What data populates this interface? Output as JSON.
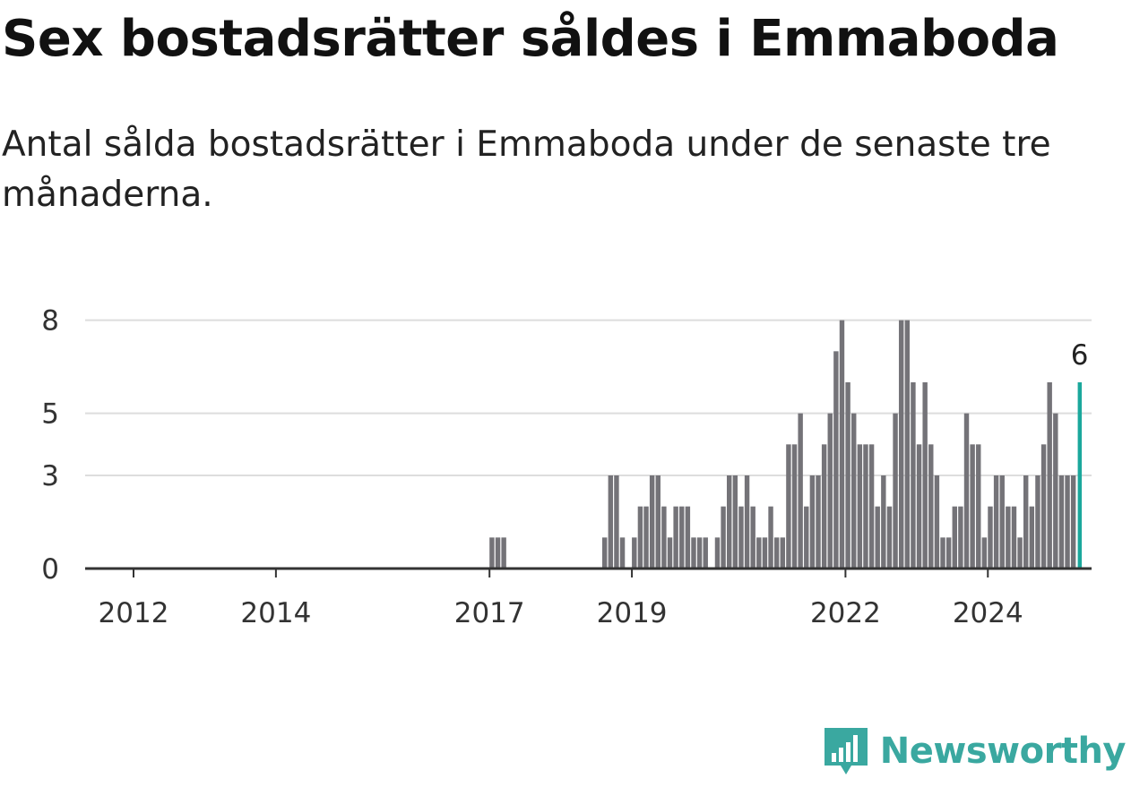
{
  "header": {
    "title": "Sex bostadsrätter såldes i Emmaboda",
    "subtitle": "Antal sålda bostadsrätter i Emmaboda under de senaste tre månaderna."
  },
  "brand": {
    "name": "Newsworthy",
    "icon": "newsworthy-logo-icon",
    "color": "#3aa8a0"
  },
  "colors": {
    "bar": "#747378",
    "highlight": "#1ba89c",
    "grid": "#dddddd",
    "axis": "#333333"
  },
  "chart_data": {
    "type": "bar",
    "x_start": "2011-01",
    "x_tick_labels": [
      "2012",
      "2014",
      "2017",
      "2019",
      "2022",
      "2024"
    ],
    "y_ticks": [
      0,
      3,
      5,
      8
    ],
    "ylim": [
      0,
      9
    ],
    "grid": true,
    "values": [
      0,
      0,
      0,
      0,
      0,
      0,
      0,
      0,
      0,
      0,
      0,
      0,
      0,
      0,
      0,
      0,
      0,
      0,
      0,
      0,
      0,
      0,
      0,
      0,
      0,
      0,
      0,
      0,
      0,
      0,
      0,
      0,
      0,
      0,
      0,
      0,
      0,
      0,
      0,
      0,
      0,
      0,
      0,
      0,
      0,
      0,
      0,
      0,
      0,
      0,
      0,
      0,
      0,
      0,
      0,
      0,
      0,
      0,
      0,
      0,
      0,
      0,
      0,
      0,
      0,
      0,
      0,
      0,
      0,
      0,
      0,
      0,
      1,
      1,
      1,
      0,
      0,
      0,
      0,
      0,
      0,
      0,
      0,
      0,
      0,
      0,
      0,
      0,
      0,
      0,
      0,
      1,
      3,
      3,
      1,
      0,
      1,
      2,
      2,
      3,
      3,
      2,
      1,
      2,
      2,
      2,
      1,
      1,
      1,
      0,
      1,
      2,
      3,
      3,
      2,
      3,
      2,
      1,
      1,
      2,
      1,
      1,
      4,
      4,
      5,
      2,
      3,
      3,
      4,
      5,
      7,
      8,
      6,
      5,
      4,
      4,
      4,
      2,
      3,
      2,
      5,
      8,
      8,
      6,
      4,
      6,
      4,
      3,
      1,
      1,
      2,
      2,
      5,
      4,
      4,
      1,
      2,
      3,
      3,
      2,
      2,
      1,
      3,
      2,
      3,
      4,
      6,
      5,
      3,
      3,
      3,
      6
    ],
    "highlight_value": 6,
    "annotation": "6"
  }
}
